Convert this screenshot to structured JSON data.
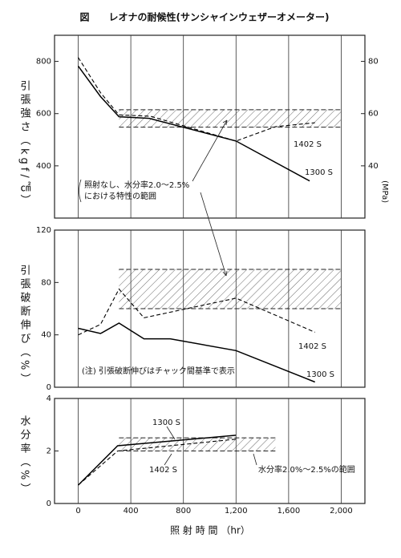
{
  "chart_data": [
    {
      "type": "line",
      "title": "図　　レオナの耐候性(サンシャインウェザーオメーター)",
      "ylabel": "引張強さ（kgf/㎠）",
      "y2label": "(MPa)",
      "xlim": [
        -180,
        2180
      ],
      "xticks": [
        0,
        400,
        800,
        1200,
        1600,
        2000
      ],
      "ylim": [
        200,
        900
      ],
      "yticks": [
        400,
        600,
        800
      ],
      "y2lim": [
        20,
        90
      ],
      "y2ticks": [
        40,
        60,
        80
      ],
      "series": [
        {
          "name": "1300 S",
          "color": "#000000",
          "style": "solid",
          "x": [
            0,
            170,
            310,
            540,
            1200,
            1760
          ],
          "values": [
            782,
            665,
            588,
            582,
            495,
            342
          ]
        },
        {
          "name": "1402 S",
          "color": "#000000",
          "style": "dashed",
          "x": [
            0,
            170,
            310,
            550,
            1200,
            1500,
            1800
          ],
          "values": [
            815,
            680,
            595,
            590,
            495,
            550,
            565
          ]
        }
      ],
      "bands": [
        {
          "x": [
            310,
            2000
          ],
          "y": [
            548,
            615
          ]
        }
      ],
      "annotations": [
        "照射なし、水分率2.0〜2.5%",
        "における特性の範囲"
      ]
    },
    {
      "type": "line",
      "ylabel": "引張破断伸び（%）",
      "xlim": [
        -180,
        2180
      ],
      "xticks": [
        0,
        400,
        800,
        1200,
        1600,
        2000
      ],
      "ylim": [
        0,
        120
      ],
      "yticks": [
        0,
        40,
        80,
        120
      ],
      "series": [
        {
          "name": "1300 S",
          "color": "#000000",
          "style": "solid",
          "x": [
            0,
            170,
            310,
            500,
            700,
            1200,
            1800
          ],
          "values": [
            45,
            41,
            49,
            37,
            37,
            28,
            4
          ]
        },
        {
          "name": "1402 S",
          "color": "#000000",
          "style": "dashed",
          "x": [
            0,
            170,
            310,
            500,
            1200,
            1800
          ],
          "values": [
            40,
            48,
            75,
            53,
            68,
            42
          ]
        }
      ],
      "bands": [
        {
          "x": [
            310,
            2000
          ],
          "y": [
            60,
            90
          ]
        }
      ],
      "annotations": [
        "(注) 引張破断伸びはチャック間基準で表示"
      ]
    },
    {
      "type": "line",
      "ylabel": "水分率（%）",
      "xlabel": "照 射 時 間 （hr）",
      "xlim": [
        -180,
        2180
      ],
      "xticks": [
        0,
        400,
        800,
        {
          "value": 1200,
          "label": "1,200"
        },
        {
          "value": 1600,
          "label": "1,600"
        },
        {
          "value": 2000,
          "label": "2,000"
        }
      ],
      "ylim": [
        0,
        4
      ],
      "yticks": [
        0,
        2,
        4
      ],
      "series": [
        {
          "name": "1300 S",
          "color": "#000000",
          "style": "solid",
          "x": [
            0,
            300,
            1200
          ],
          "values": [
            0.7,
            2.2,
            2.6
          ]
        },
        {
          "name": "1402 S",
          "color": "#000000",
          "style": "dashed",
          "x": [
            0,
            300,
            1200
          ],
          "values": [
            0.7,
            2.0,
            2.45
          ]
        }
      ],
      "bands": [
        {
          "x": [
            310,
            1500
          ],
          "y": [
            2.0,
            2.5
          ]
        }
      ],
      "annotations": [
        "水分率2.0%〜2.5%の範囲"
      ]
    }
  ]
}
